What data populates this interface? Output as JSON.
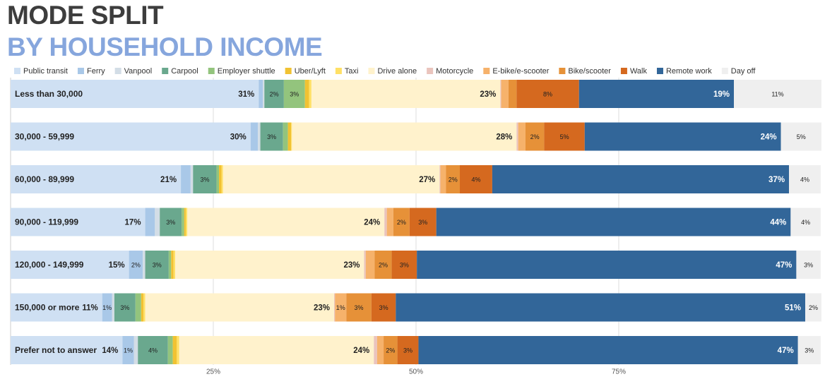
{
  "chart_data": {
    "type": "bar",
    "orientation": "horizontal",
    "stacked": true,
    "title": "MODE SPLIT",
    "subtitle": "BY HOUSEHOLD INCOME",
    "categories": [
      "Less than 30,000",
      "30,000 - 59,999",
      "60,000 - 89,999",
      "90,000 - 119,999",
      "120,000 - 149,999",
      "150,000 or more",
      "Prefer not to answer"
    ],
    "series": [
      {
        "name": "Public transit",
        "color": "#cfe0f3",
        "values": [
          30.6,
          29.6,
          21.0,
          16.6,
          14.6,
          11.3,
          13.8
        ],
        "value_labels": [
          "31%",
          "30%",
          "21%",
          "17%",
          "15%",
          "11%",
          "14%"
        ]
      },
      {
        "name": "Ferry",
        "color": "#a9c8e8",
        "values": [
          0.5,
          0.9,
          1.2,
          1.2,
          1.7,
          1.2,
          1.4
        ],
        "value_labels": [
          null,
          null,
          null,
          null,
          "2%",
          "1%",
          "1%"
        ]
      },
      {
        "name": "Vanpool",
        "color": "#d3dde6",
        "values": [
          0.2,
          0.3,
          0.3,
          0.6,
          0.3,
          0.3,
          0.5
        ]
      },
      {
        "name": "Carpool",
        "color": "#6aa88e",
        "values": [
          2.4,
          2.8,
          2.9,
          2.7,
          2.9,
          2.6,
          3.7
        ],
        "value_labels": [
          "2%",
          "3%",
          "3%",
          "3%",
          "3%",
          "3%",
          "4%"
        ]
      },
      {
        "name": "Employer shuttle",
        "color": "#93c47d",
        "values": [
          2.6,
          0.6,
          0.3,
          0.3,
          0.3,
          0.7,
          0.6
        ],
        "value_labels": [
          "3%",
          null,
          null,
          null,
          null,
          null,
          null
        ]
      },
      {
        "name": "Uber/Lyft",
        "color": "#f1c232",
        "values": [
          0.5,
          0.4,
          0.3,
          0.2,
          0.3,
          0.3,
          0.5
        ]
      },
      {
        "name": "Taxi",
        "color": "#ffe066",
        "values": [
          0.3,
          0.1,
          0.2,
          0.2,
          0.2,
          0.2,
          0.3
        ]
      },
      {
        "name": "Drive alone",
        "color": "#fff2cc",
        "values": [
          23.3,
          27.7,
          26.7,
          24.3,
          23.3,
          23.3,
          24.0
        ],
        "value_labels": [
          "23%",
          "28%",
          "27%",
          "24%",
          "23%",
          "23%",
          "24%"
        ]
      },
      {
        "name": "Motorcycle",
        "color": "#eac4bd",
        "values": [
          0.1,
          0.2,
          0.1,
          0.3,
          0.2,
          0.1,
          0.4
        ]
      },
      {
        "name": "E-bike/e-scooter",
        "color": "#f6b26b",
        "values": [
          0.9,
          0.9,
          0.7,
          0.8,
          1.1,
          1.4,
          0.8
        ],
        "value_labels": [
          null,
          null,
          null,
          null,
          null,
          "1%",
          null
        ]
      },
      {
        "name": "Bike/scooter",
        "color": "#e69138",
        "values": [
          1.0,
          2.3,
          1.7,
          2.0,
          2.1,
          3.1,
          1.7
        ],
        "value_labels": [
          null,
          "2%",
          "2%",
          "2%",
          "2%",
          "3%",
          "2%"
        ]
      },
      {
        "name": "Walk",
        "color": "#d5691f",
        "values": [
          7.7,
          5.0,
          4.0,
          3.3,
          3.1,
          3.0,
          2.6
        ],
        "value_labels": [
          "8%",
          "5%",
          "4%",
          "3%",
          "3%",
          "3%",
          "3%"
        ]
      },
      {
        "name": "Remote work",
        "color": "#326699",
        "values": [
          19.1,
          24.2,
          36.6,
          43.7,
          46.8,
          50.5,
          46.8
        ],
        "value_labels": [
          "19%",
          "24%",
          "37%",
          "44%",
          "47%",
          "51%",
          "47%"
        ]
      },
      {
        "name": "Day off",
        "color": "#efefef",
        "values": [
          10.8,
          5.0,
          3.9,
          3.7,
          3.0,
          2.0,
          2.8
        ],
        "value_labels": [
          "11%",
          "5%",
          "4%",
          "4%",
          "3%",
          "2%",
          "3%"
        ]
      }
    ],
    "xlim": [
      0,
      100
    ],
    "xticks": [
      {
        "value": 25,
        "label": "25%"
      },
      {
        "value": 50,
        "label": "50%"
      },
      {
        "value": 75,
        "label": "75%"
      }
    ],
    "grid": true,
    "legend": "top"
  }
}
